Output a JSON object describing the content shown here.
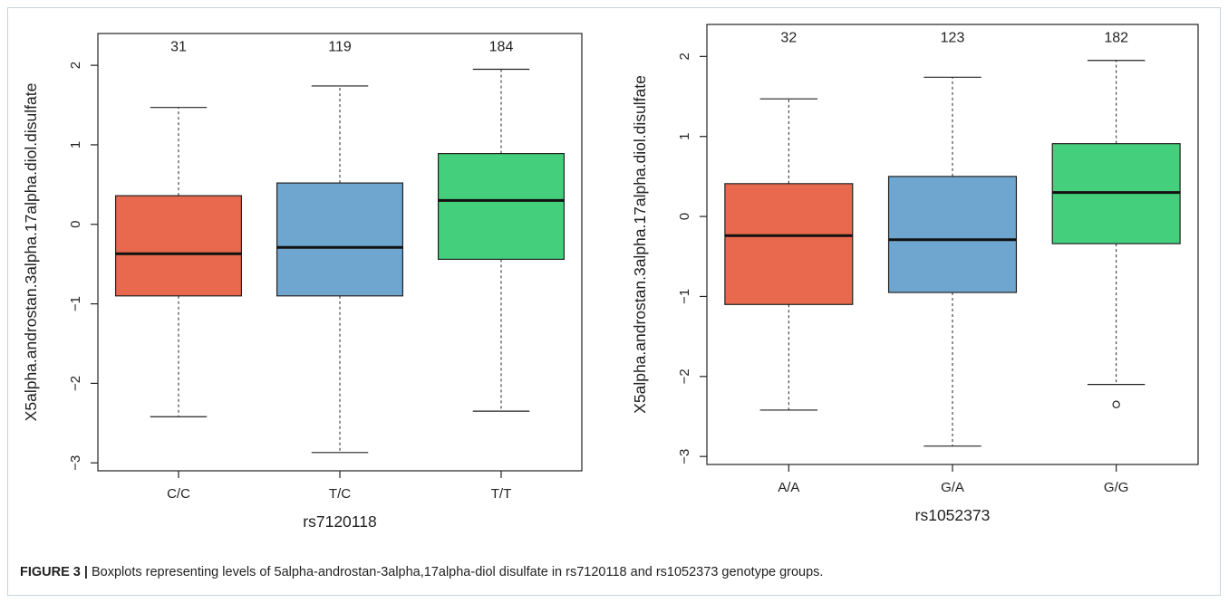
{
  "caption": {
    "label": "FIGURE 3 |",
    "text": "Boxplots representing levels of 5alpha-androstan-3alpha,17alpha-diol disulfate in rs7120118 and rs1052373 genotype groups."
  },
  "chart_data": [
    {
      "type": "boxplot",
      "xlabel": "rs7120118",
      "ylabel": "X5alpha.androstan.3alpha.17alpha.diol.disulfate",
      "ylim": [
        -3,
        2
      ],
      "yticks": [
        -3,
        -2,
        -1,
        0,
        1,
        2
      ],
      "categories": [
        "C/C",
        "T/C",
        "T/T"
      ],
      "counts": [
        "31",
        "119",
        "184"
      ],
      "colors": [
        "#e8694d",
        "#6fa6cf",
        "#43cf7c"
      ],
      "boxes": [
        {
          "whisker_low": -2.42,
          "q1": -0.9,
          "median": -0.37,
          "q3": 0.36,
          "whisker_high": 1.47,
          "outliers": []
        },
        {
          "whisker_low": -2.87,
          "q1": -0.9,
          "median": -0.29,
          "q3": 0.52,
          "whisker_high": 1.74,
          "outliers": []
        },
        {
          "whisker_low": -2.35,
          "q1": -0.44,
          "median": 0.3,
          "q3": 0.89,
          "whisker_high": 1.95,
          "outliers": []
        }
      ]
    },
    {
      "type": "boxplot",
      "xlabel": "rs1052373",
      "ylabel": "X5alpha.androstan.3alpha.17alpha.diol.disulfate",
      "ylim": [
        -3,
        2
      ],
      "yticks": [
        -3,
        -2,
        -1,
        0,
        1,
        2
      ],
      "categories": [
        "A/A",
        "G/A",
        "G/G"
      ],
      "counts": [
        "32",
        "123",
        "182"
      ],
      "colors": [
        "#e8694d",
        "#6fa6cf",
        "#43cf7c"
      ],
      "boxes": [
        {
          "whisker_low": -2.42,
          "q1": -1.1,
          "median": -0.24,
          "q3": 0.41,
          "whisker_high": 1.47,
          "outliers": []
        },
        {
          "whisker_low": -2.87,
          "q1": -0.95,
          "median": -0.29,
          "q3": 0.5,
          "whisker_high": 1.74,
          "outliers": []
        },
        {
          "whisker_low": -2.1,
          "q1": -0.34,
          "median": 0.3,
          "q3": 0.91,
          "whisker_high": 1.95,
          "outliers": [
            -2.35
          ]
        }
      ]
    }
  ]
}
